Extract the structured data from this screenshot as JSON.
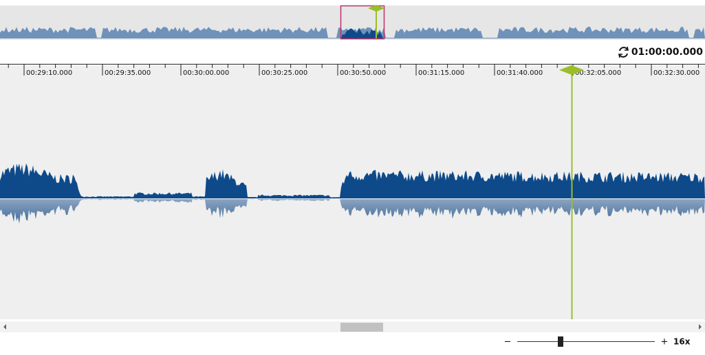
{
  "header": {
    "duration": "01:00:00.000"
  },
  "ruler": {
    "labels": [
      "00:29:10.000",
      "00:29:35.000",
      "00:30:00.000",
      "00:30:25.000",
      "00:30:50.000",
      "00:31:15.000",
      "00:31:40.000",
      "00:32:05.000",
      "00:32:30.000"
    ]
  },
  "zoom": {
    "minus": "−",
    "plus": "+",
    "level": "16x"
  }
}
